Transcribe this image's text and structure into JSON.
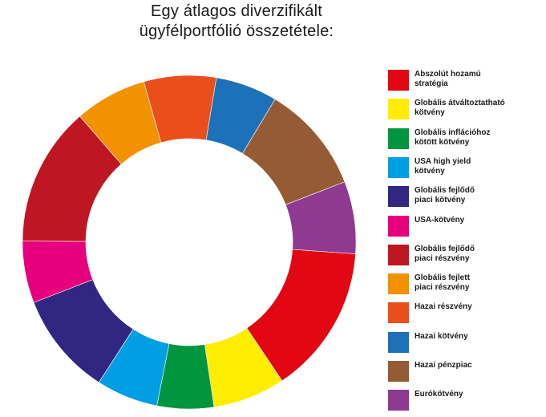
{
  "title_line1": "Egy átlagos diverzifikált",
  "title_line2": "ügyfélportfólió összetétele:",
  "chart_data": {
    "type": "pie",
    "subtype": "donut",
    "legend_position": "right",
    "start_angle_deg": 94,
    "direction": "clockwise",
    "categories": [
      "Abszolút hozamú stratégia",
      "Globális átváltoztatható kötvény",
      "Globális inflációhoz kötött kötvény",
      "USA high yield kötvény",
      "Globális fejlődő piaci kötvény",
      "USA-kötvény",
      "Globális fejlődő piaci részvény",
      "Globális fejlett piaci részvény",
      "Hazai részvény",
      "Hazai kötvény",
      "Hazai pénzpiac",
      "Eurókötvény"
    ],
    "values": [
      14.5,
      7,
      5.5,
      6,
      10,
      6,
      13.5,
      7,
      7,
      6,
      10.5,
      7
    ],
    "colors": [
      "#e30613",
      "#ffed00",
      "#009640",
      "#009fe3",
      "#312783",
      "#e6007e",
      "#be1622",
      "#f39200",
      "#e94e1b",
      "#1d71b8",
      "#955b34",
      "#8e3a91"
    ]
  },
  "legend": [
    {
      "line1": "Abszolút hozamú",
      "line2": "stratégia"
    },
    {
      "line1": "Globális átváltoztatható",
      "line2": "kötvény"
    },
    {
      "line1": "Globális inflációhoz",
      "line2": "kötött kötvény"
    },
    {
      "line1": "USA high yield",
      "line2": "kötvény"
    },
    {
      "line1": "Globális fejlődő",
      "line2": "piaci kötvény"
    },
    {
      "line1": "USA-kötvény",
      "line2": ""
    },
    {
      "line1": "Globális fejlődő",
      "line2": "piaci részvény"
    },
    {
      "line1": "Globális fejlett",
      "line2": "piaci részvény"
    },
    {
      "line1": "Hazai részvény",
      "line2": ""
    },
    {
      "line1": "Hazai kötvény",
      "line2": ""
    },
    {
      "line1": "Hazai pénzpiac",
      "line2": ""
    },
    {
      "line1": "Eurókötvény",
      "line2": ""
    }
  ]
}
